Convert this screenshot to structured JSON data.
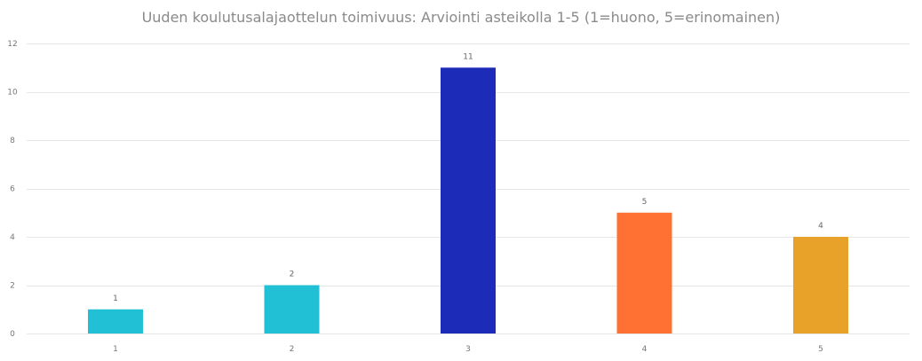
{
  "chart_data": {
    "type": "bar",
    "title": "Uuden koulutusalajaottelun toimivuus: Arviointi asteikolla 1-5 (1=huono, 5=erinomainen)",
    "xlabel": "",
    "ylabel": "",
    "categories": [
      "1",
      "2",
      "3",
      "4",
      "5"
    ],
    "values": [
      1,
      2,
      11,
      5,
      4
    ],
    "colors": [
      "#22c0d4",
      "#22c0d4",
      "#1c2bb8",
      "#ff7033",
      "#e8a22a"
    ],
    "ylim": [
      0,
      12
    ],
    "yticks": [
      0,
      2,
      4,
      6,
      8,
      10,
      12
    ],
    "grid": true,
    "data_labels": true,
    "legend": "none"
  }
}
